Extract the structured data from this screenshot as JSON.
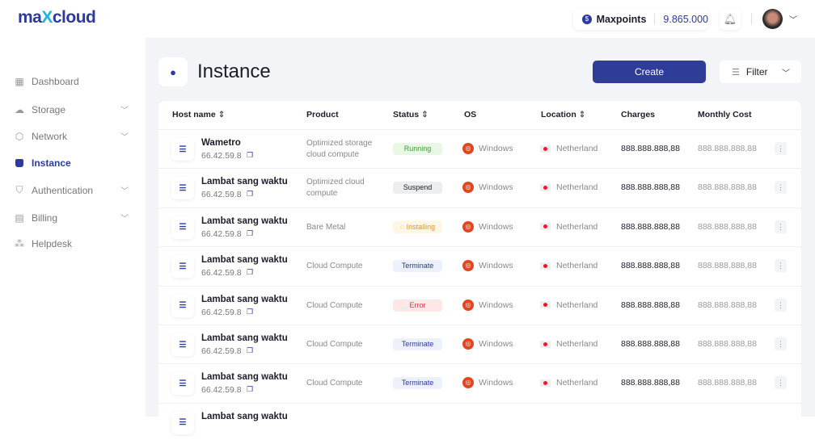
{
  "brand": {
    "logo": "maxcloud"
  },
  "header": {
    "points_label": "Maxpoints",
    "points_value": "9.865.000"
  },
  "sidebar": {
    "items": [
      {
        "label": "Dashboard",
        "icon": "dashboard-icon",
        "glyph": "▦",
        "expandable": false
      },
      {
        "label": "Storage",
        "icon": "cloud-icon",
        "glyph": "☁",
        "expandable": true
      },
      {
        "label": "Network",
        "icon": "network-icon",
        "glyph": "⬡",
        "expandable": true
      },
      {
        "label": "Instance",
        "icon": "bag-icon",
        "glyph": "🔒",
        "expandable": false,
        "active": true
      },
      {
        "label": "Authentication",
        "icon": "shield-icon",
        "glyph": "⛉",
        "expandable": true
      },
      {
        "label": "Billing",
        "icon": "receipt-icon",
        "glyph": "▤",
        "expandable": true
      },
      {
        "label": "Helpdesk",
        "icon": "helpdesk-icon",
        "glyph": "⁂",
        "expandable": false
      }
    ]
  },
  "page": {
    "title": "Instance",
    "create_label": "Create",
    "filter_label": "Filter"
  },
  "table": {
    "columns": [
      "Host name",
      "Product",
      "Status",
      "OS",
      "Location",
      "Charges",
      "Monthly Cost"
    ],
    "rows": [
      {
        "host": "Wametro",
        "ip": "66.42.59.8",
        "product": "Optimized storage cloud compute",
        "status": "Running",
        "os": "Windows",
        "location": "Netherland",
        "charges": "888.888.888,88",
        "monthly": "888.888.888,88"
      },
      {
        "host": "Lambat sang waktu",
        "ip": "66.42.59.8",
        "product": "Optimized cloud compute",
        "status": "Suspend",
        "os": "Windows",
        "location": "Netherland",
        "charges": "888.888.888,88",
        "monthly": "888.888.888,88"
      },
      {
        "host": "Lambat sang waktu",
        "ip": "66.42.59.8",
        "product": "Bare Metal",
        "status": "Installing",
        "os": "Windows",
        "location": "Netherland",
        "charges": "888.888.888,88",
        "monthly": "888.888.888,88"
      },
      {
        "host": "Lambat sang waktu",
        "ip": "66.42.59.8",
        "product": "Cloud Compute",
        "status": "Terminate",
        "os": "Windows",
        "location": "Netherland",
        "charges": "888.888.888,88",
        "monthly": "888.888.888,88"
      },
      {
        "host": "Lambat sang waktu",
        "ip": "66.42.59.8",
        "product": "Cloud Compute",
        "status": "Error",
        "os": "Windows",
        "location": "Netherland",
        "charges": "888.888.888,88",
        "monthly": "888.888.888,88"
      },
      {
        "host": "Lambat sang waktu",
        "ip": "66.42.59.8",
        "product": "Cloud Compute",
        "status": "Terminate",
        "os": "Windows",
        "location": "Netherland",
        "charges": "888.888.888,88",
        "monthly": "888.888.888,88"
      },
      {
        "host": "Lambat sang waktu",
        "ip": "66.42.59.8",
        "product": "Cloud Compute",
        "status": "Terminate",
        "os": "Windows",
        "location": "Netherland",
        "charges": "888.888.888,88",
        "monthly": "888.888.888,88"
      },
      {
        "host": "Lambat sang waktu"
      }
    ]
  },
  "status_colors": {
    "Running": {
      "bg": "#e8f8e4",
      "fg": "#3f9a3a"
    },
    "Suspend": {
      "bg": "#eceef0",
      "fg": "#1b1d2a"
    },
    "Installing": {
      "bg": "#fff7e3",
      "fg": "#e8960e"
    },
    "Terminate": {
      "bg": "#edf1fb",
      "fg": "#2b3a9c"
    },
    "Error": {
      "bg": "#fde7e7",
      "fg": "#d23a3a"
    }
  },
  "colors": {
    "accent": "#2f3d99",
    "background": "#f3f4f7"
  }
}
